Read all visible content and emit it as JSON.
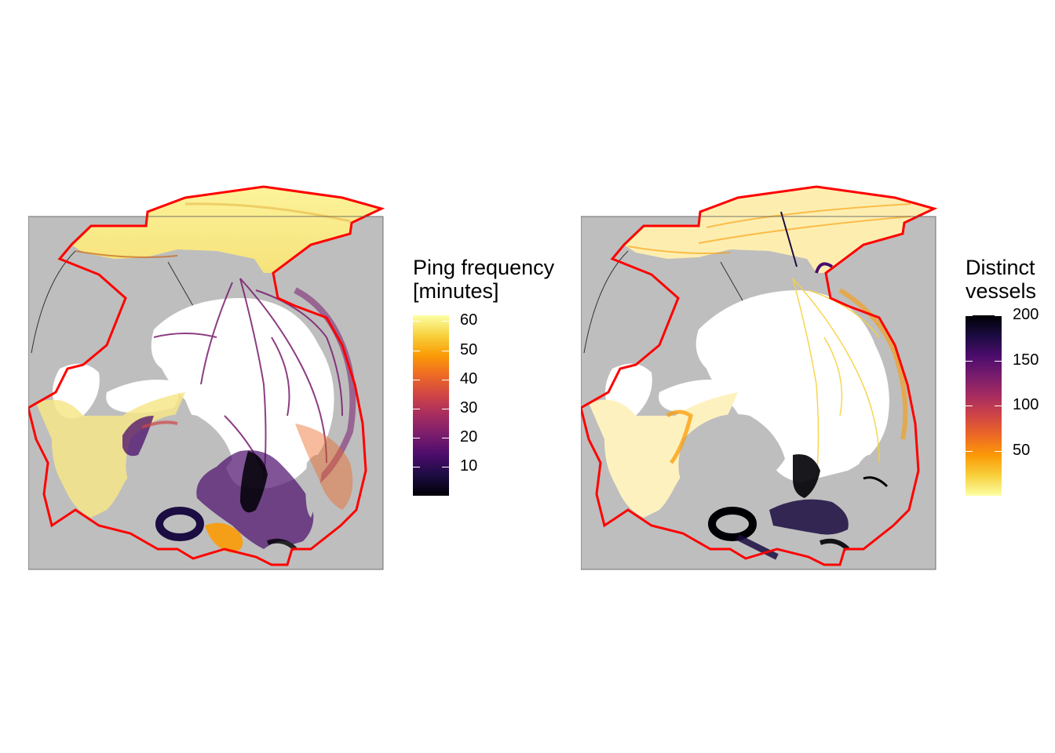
{
  "colors": {
    "land": "#bebebe",
    "boundary": "#ff0000",
    "ocean": "#ffffff",
    "inferno": [
      "#000004",
      "#1b0c41",
      "#4a0c6b",
      "#781c6d",
      "#a52c60",
      "#cf4446",
      "#ed6925",
      "#fb9b06",
      "#f7d13d",
      "#fcffa4"
    ]
  },
  "maps": [
    {
      "id": "ping-frequency",
      "legend": {
        "title_line1": "Ping frequency",
        "title_line2": "[minutes]",
        "min": 0,
        "max": 62,
        "reversed": false,
        "ticks": [
          {
            "value": 60,
            "label": "60"
          },
          {
            "value": 50,
            "label": "50"
          },
          {
            "value": 40,
            "label": "40"
          },
          {
            "value": 30,
            "label": "30"
          },
          {
            "value": 20,
            "label": "20"
          },
          {
            "value": 10,
            "label": "10"
          }
        ]
      }
    },
    {
      "id": "distinct-vessels",
      "legend": {
        "title_line1": "Distinct",
        "title_line2": "vessels",
        "min": 0,
        "max": 200,
        "reversed": true,
        "ticks": [
          {
            "value": 200,
            "label": "200"
          },
          {
            "value": 150,
            "label": "150"
          },
          {
            "value": 100,
            "label": "100"
          },
          {
            "value": 50,
            "label": "50"
          }
        ]
      }
    }
  ]
}
